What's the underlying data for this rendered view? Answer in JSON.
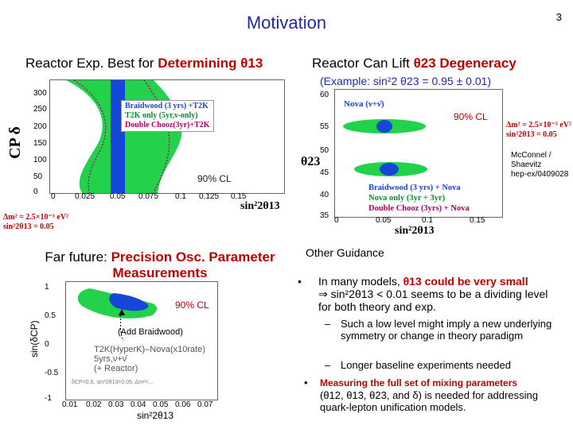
{
  "slide": {
    "title": "Motivation",
    "page_number": "3"
  },
  "left_top": {
    "heading_prefix": "Reactor Exp. Best for ",
    "heading_em": "Determining θ13",
    "y_label": "CP δ",
    "x_label": "sin²2θ13",
    "y_ticks": [
      "300",
      "250",
      "200",
      "150",
      "100",
      "50",
      "0"
    ],
    "x_ticks": [
      "0",
      "0.025",
      "0.05",
      "0.075",
      "0.1",
      "0.125",
      "0.15"
    ],
    "legend": [
      "Braidwood (3 yrs) +T2K",
      "T2K only (5yr,ν-only)",
      "Double Chooz(3yr)+T2K"
    ],
    "cl_label": "90% CL",
    "params_line1": "Δm² = 2.5×10⁻³ eV²",
    "params_line2": "sin²2θ13 = 0.05"
  },
  "right_top": {
    "heading_prefix": "Reactor Can Lift ",
    "heading_em": "θ23 Degeneracy",
    "example": "(Example: sin²2 θ23 = 0.95 ± 0.01)",
    "y_label": "θ23",
    "x_label": "sin²2θ13",
    "y_ticks": [
      "60",
      "55",
      "50",
      "45",
      "40",
      "35"
    ],
    "x_ticks": [
      "0",
      "0.05",
      "0.1",
      "0.15"
    ],
    "nova_label": "Nova (ν+ν̄)",
    "cl_label": "90% CL",
    "legend": [
      "Braidwood (3 yrs) + Nova",
      "Nova only (3yr + 3yr)",
      "Double Chooz (3yrs) + Nova"
    ],
    "params_line1": "Δm² = 2.5×10⁻³ eV²",
    "params_line2": "sin²2θ13 = 0.05",
    "citation": [
      "McConnel /",
      "Shaevitz",
      "hep-ex/0409028"
    ]
  },
  "left_bottom": {
    "heading_prefix": "Far future: ",
    "heading_em_line1": "Precision Osc. Parameter",
    "heading_em_line2": "Measurements",
    "y_label": "sin(δCP)",
    "x_label": "sin²2θ13",
    "y_ticks": [
      "1",
      "0.5",
      "0",
      "-0.5",
      "-1"
    ],
    "x_ticks": [
      "0.01",
      "0.02",
      "0.03",
      "0.04",
      "0.05",
      "0.06",
      "0.07"
    ],
    "cl_label": "90% CL",
    "add_label": "(Add Braidwood)",
    "legend": [
      "T2K(HyperK)–Nova(x10rate)",
      "5yrs,ν+ν̄",
      "(+ Reactor)"
    ],
    "footer_note": "δCP=0.5, sin²2θ13=0.05, Δm²=..."
  },
  "right_bottom": {
    "heading": "Other Guidance",
    "bullet1_prefix": "In many models, ",
    "bullet1_em": "θ13 could be very small",
    "bullet1_rest": "⇒ sin²2θ13 < 0.01 seems to be a dividing level for both theory and exp.",
    "sub1": "Such a low level might imply a new underlying symmetry or change in theory paradigm",
    "sub2": "Longer baseline experiments needed",
    "bullet2_em": "Measuring the full set of mixing parameters",
    "bullet2_rest": "(θ12, θ13, θ23, and δ) is needed for addressing quark-lepton unification models."
  },
  "colors": {
    "title": "#1f2aa6",
    "emphasis": "#c00000",
    "green_band": "#21d24a",
    "blue_band": "#1446d8",
    "dotted": "#b00060"
  }
}
